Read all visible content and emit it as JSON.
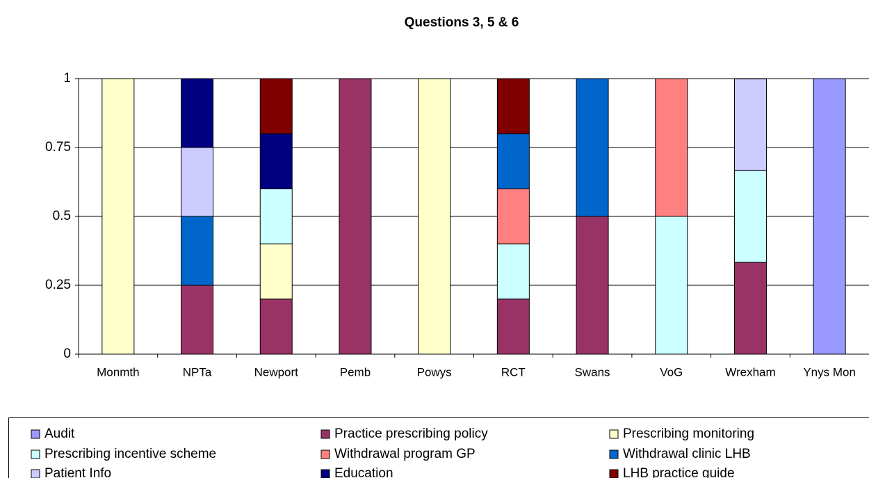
{
  "chart_data": {
    "type": "stacked_bar",
    "title": "Questions 3, 5 & 6",
    "categories": [
      "Monmth",
      "NPTa",
      "Newport",
      "Pemb",
      "Powys",
      "RCT",
      "Swans",
      "VoG",
      "Wrexham",
      "Ynys Mon"
    ],
    "series": [
      {
        "name": "Audit",
        "color": "#9999ff",
        "values": [
          0,
          0,
          0,
          0,
          0,
          0,
          0,
          0,
          0,
          1
        ]
      },
      {
        "name": "Practice prescribing policy",
        "color": "#993366",
        "values": [
          0,
          0.25,
          0.2,
          1,
          0,
          0.2,
          0.5,
          0,
          0.333,
          0
        ]
      },
      {
        "name": "Prescribing monitoring",
        "color": "#ffffcc",
        "values": [
          1,
          0,
          0.2,
          0,
          1,
          0,
          0,
          0,
          0,
          0
        ]
      },
      {
        "name": "Prescribing incentive scheme",
        "color": "#ccffff",
        "values": [
          0,
          0,
          0.2,
          0,
          0,
          0.2,
          0,
          0.5,
          0.333,
          0
        ]
      },
      {
        "name": "Withdrawal program GP",
        "color": "#ff8080",
        "values": [
          0,
          0,
          0,
          0,
          0,
          0.2,
          0,
          0.5,
          0,
          0
        ]
      },
      {
        "name": "Withdrawal clinic LHB",
        "color": "#0066cc",
        "values": [
          0,
          0.25,
          0,
          0,
          0,
          0.2,
          0.5,
          0,
          0,
          0
        ]
      },
      {
        "name": "Patient Info",
        "color": "#ccccff",
        "values": [
          0,
          0.25,
          0,
          0,
          0,
          0,
          0,
          0,
          0.333,
          0
        ]
      },
      {
        "name": "Education",
        "color": "#000080",
        "values": [
          0,
          0.25,
          0.2,
          0,
          0,
          0,
          0,
          0,
          0,
          0
        ]
      },
      {
        "name": "LHB practice guide",
        "color": "#800000",
        "values": [
          0,
          0,
          0.2,
          0,
          0,
          0.2,
          0,
          0,
          0,
          0
        ]
      }
    ],
    "ylim": [
      0,
      1
    ],
    "yticks": [
      0,
      0.25,
      0.5,
      0.75,
      1
    ],
    "grid": true,
    "legend": "bottom"
  }
}
